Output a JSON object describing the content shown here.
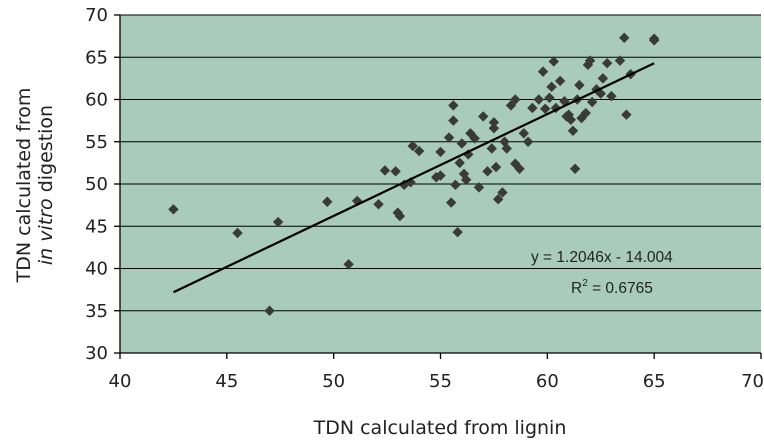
{
  "chart_data": {
    "type": "scatter",
    "xlabel": "TDN calculated from lignin",
    "ylabel_line1": "TDN calculated from",
    "ylabel_line2_italic": "in vitro",
    "ylabel_line2_rest": " digestion",
    "xlim": [
      40,
      70
    ],
    "ylim": [
      30,
      70
    ],
    "x_ticks": [
      40,
      45,
      50,
      55,
      60,
      65,
      70
    ],
    "y_ticks": [
      30,
      35,
      40,
      45,
      50,
      55,
      60,
      65,
      70
    ],
    "grid": "horizontal",
    "colors": {
      "plot_background": "#a8cbbd",
      "marker": "#3a3a3a",
      "trendline": "#000000"
    },
    "trendline": {
      "slope": 1.2046,
      "intercept": -14.004,
      "x_range": [
        42.5,
        65
      ],
      "equation_text": "y = 1.2046x - 14.004",
      "r2_prefix": "R",
      "r2_sup": "2",
      "r2_suffix": " = 0.6765"
    },
    "points": [
      [
        42.5,
        47
      ],
      [
        45.5,
        44.2
      ],
      [
        47,
        35
      ],
      [
        47.4,
        45.5
      ],
      [
        49.7,
        47.9
      ],
      [
        50.7,
        40.5
      ],
      [
        51.1,
        48
      ],
      [
        52.1,
        47.6
      ],
      [
        52.4,
        51.6
      ],
      [
        52.9,
        51.5
      ],
      [
        53.0,
        46.6
      ],
      [
        53.1,
        46.2
      ],
      [
        53.3,
        49.9
      ],
      [
        53.6,
        50.2
      ],
      [
        53.7,
        54.5
      ],
      [
        54.0,
        53.9
      ],
      [
        54.8,
        50.8
      ],
      [
        55.0,
        51.0
      ],
      [
        55.0,
        53.8
      ],
      [
        55.4,
        55.5
      ],
      [
        55.5,
        47.8
      ],
      [
        55.6,
        59.3
      ],
      [
        55.6,
        57.5
      ],
      [
        55.7,
        49.9
      ],
      [
        55.8,
        44.3
      ],
      [
        55.9,
        52.5
      ],
      [
        56.0,
        54.8
      ],
      [
        56.1,
        51.2
      ],
      [
        56.2,
        50.5
      ],
      [
        56.3,
        53.5
      ],
      [
        56.4,
        56.0
      ],
      [
        56.6,
        55.4
      ],
      [
        56.8,
        49.6
      ],
      [
        57.0,
        58.0
      ],
      [
        57.2,
        51.5
      ],
      [
        57.4,
        54.2
      ],
      [
        57.5,
        56.6
      ],
      [
        57.5,
        57.3
      ],
      [
        57.6,
        52.0
      ],
      [
        57.7,
        48.2
      ],
      [
        57.9,
        49.0
      ],
      [
        58.0,
        55.0
      ],
      [
        58.1,
        54.2
      ],
      [
        58.3,
        59.3
      ],
      [
        58.5,
        60.0
      ],
      [
        58.5,
        52.4
      ],
      [
        58.7,
        51.8
      ],
      [
        58.9,
        56.0
      ],
      [
        59.1,
        55.0
      ],
      [
        59.3,
        59.0
      ],
      [
        59.6,
        60.0
      ],
      [
        59.8,
        63.3
      ],
      [
        59.9,
        58.9
      ],
      [
        60.1,
        60.2
      ],
      [
        60.2,
        61.5
      ],
      [
        60.3,
        64.5
      ],
      [
        60.4,
        59.0
      ],
      [
        60.6,
        62.2
      ],
      [
        60.8,
        59.8
      ],
      [
        60.9,
        58.0
      ],
      [
        61.0,
        58.2
      ],
      [
        61.1,
        57.6
      ],
      [
        61.2,
        56.3
      ],
      [
        61.3,
        51.8
      ],
      [
        61.4,
        60.0
      ],
      [
        61.5,
        61.7
      ],
      [
        61.6,
        57.8
      ],
      [
        61.8,
        58.4
      ],
      [
        61.9,
        64.1
      ],
      [
        62.0,
        64.6
      ],
      [
        62.1,
        59.7
      ],
      [
        62.3,
        61.2
      ],
      [
        62.5,
        60.7
      ],
      [
        62.6,
        62.5
      ],
      [
        62.8,
        64.3
      ],
      [
        63.0,
        60.4
      ],
      [
        63.4,
        64.6
      ],
      [
        63.6,
        67.3
      ],
      [
        63.7,
        58.2
      ],
      [
        63.9,
        63.0
      ],
      [
        65.0,
        67.2
      ],
      [
        65.0,
        67.0
      ]
    ]
  }
}
